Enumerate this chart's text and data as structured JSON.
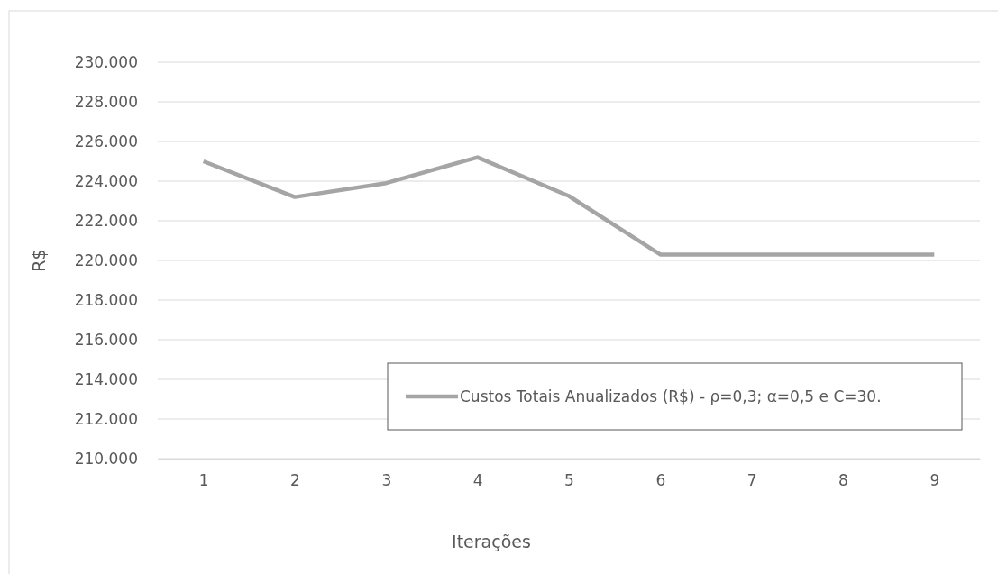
{
  "chart_data": {
    "type": "line",
    "xlabel": "Iterações",
    "ylabel": "R$",
    "categories": [
      "1",
      "2",
      "3",
      "4",
      "5",
      "6",
      "7",
      "8",
      "9"
    ],
    "series": [
      {
        "name": "Custos Totais Anualizados (R$) - ρ=0,3; α=0,5 e C=30.",
        "color": "#a5a5a5",
        "values": [
          225000,
          223200,
          223900,
          225200,
          223250,
          220300,
          220300,
          220300,
          220300
        ]
      }
    ],
    "ylim": [
      210000,
      230000
    ],
    "yticks": [
      {
        "value": 210000,
        "label": "210.000"
      },
      {
        "value": 212000,
        "label": "212.000"
      },
      {
        "value": 214000,
        "label": "214.000"
      },
      {
        "value": 216000,
        "label": "216.000"
      },
      {
        "value": 218000,
        "label": "218.000"
      },
      {
        "value": 220000,
        "label": "220.000"
      },
      {
        "value": 222000,
        "label": "222.000"
      },
      {
        "value": 224000,
        "label": "224.000"
      },
      {
        "value": 226000,
        "label": "226.000"
      },
      {
        "value": 228000,
        "label": "228.000"
      },
      {
        "value": 230000,
        "label": "230.000"
      }
    ],
    "grid": "y",
    "legend": "bottom right",
    "marker": "none",
    "line_style": "solid"
  }
}
